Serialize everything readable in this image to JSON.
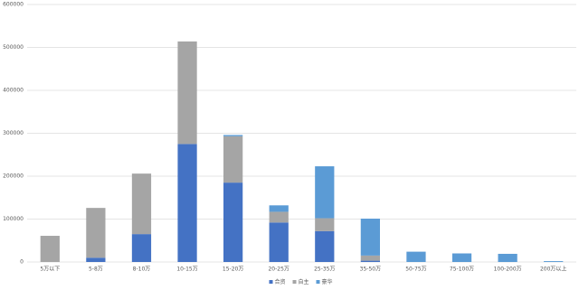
{
  "chart_data": {
    "type": "stacked-bar",
    "categories": [
      "5万以下",
      "5-8万",
      "8-10万",
      "10-15万",
      "15-20万",
      "20-25万",
      "25-35万",
      "35-50万",
      "50-75万",
      "75-100万",
      "100-200万",
      "200万以上"
    ],
    "series": [
      {
        "name": "合资",
        "color": "#4472c4",
        "values": [
          0,
          10000,
          65000,
          275000,
          185000,
          92000,
          72000,
          3000,
          0,
          0,
          0,
          0
        ]
      },
      {
        "name": "自主",
        "color": "#a5a5a5",
        "values": [
          61000,
          116000,
          141000,
          239000,
          108000,
          25000,
          30000,
          12000,
          0,
          0,
          0,
          0
        ]
      },
      {
        "name": "豪华",
        "color": "#5b9bd5",
        "values": [
          0,
          0,
          0,
          0,
          3000,
          15000,
          121000,
          86000,
          24000,
          20000,
          19000,
          2000
        ]
      }
    ],
    "ylim": [
      0,
      600000
    ],
    "yticks": [
      0,
      100000,
      200000,
      300000,
      400000,
      500000,
      600000
    ],
    "grid": true,
    "legend": "bottom"
  }
}
